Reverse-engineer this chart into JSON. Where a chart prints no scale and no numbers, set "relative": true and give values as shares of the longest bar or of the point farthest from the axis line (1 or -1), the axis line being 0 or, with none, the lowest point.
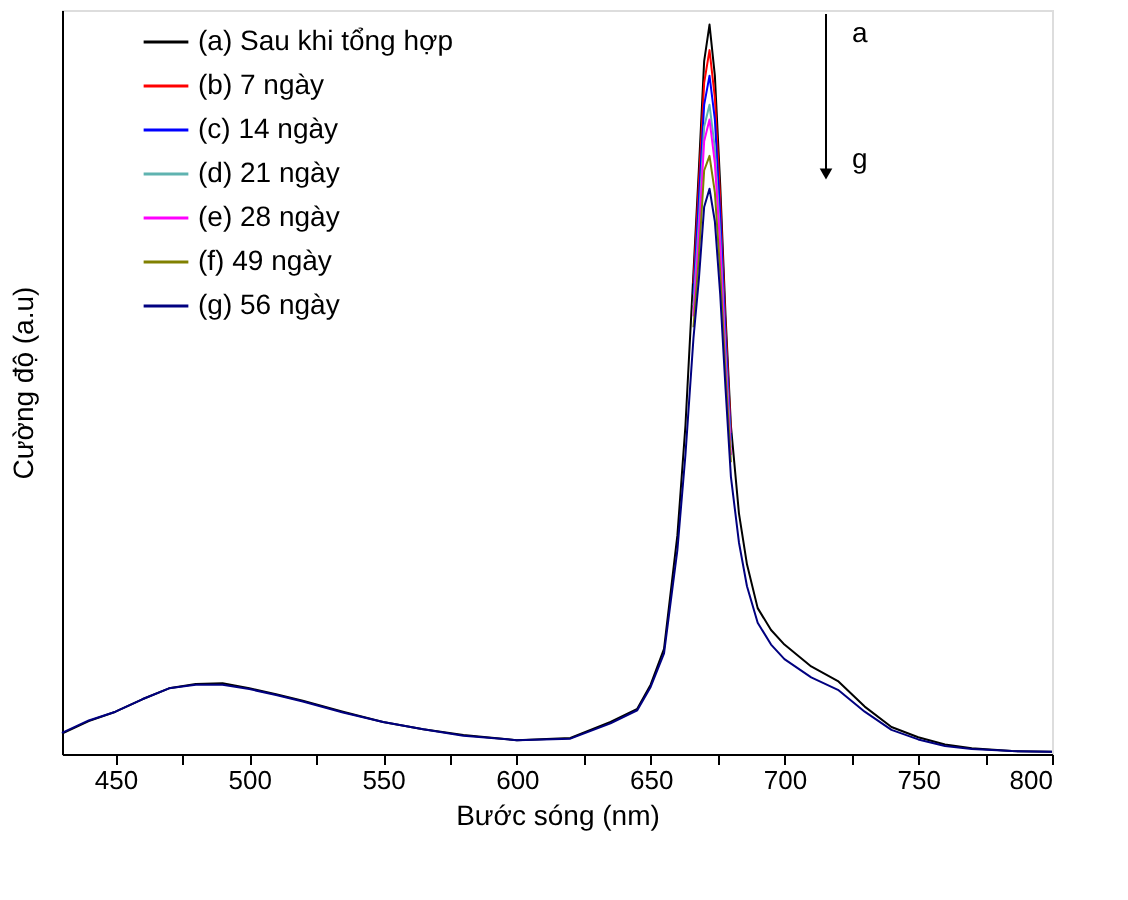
{
  "chart_data": {
    "type": "line",
    "xlabel": "Bước sóng (nm)",
    "ylabel": "Cường độ (a.u)",
    "relative": true,
    "grid": false,
    "legend": "top left",
    "line_style": "solid",
    "marker": "none",
    "tick_labels": "x",
    "x": [
      430,
      440,
      450,
      460,
      470,
      480,
      490,
      500,
      510,
      520,
      535,
      550,
      565,
      580,
      600,
      620,
      635,
      645,
      650,
      655,
      660,
      663,
      666,
      668,
      670,
      672,
      674,
      676,
      678,
      680,
      683,
      686,
      690,
      695,
      700,
      710,
      720,
      730,
      740,
      750,
      760,
      770,
      785,
      800
    ],
    "xlim": [
      430,
      800
    ],
    "xticks": [
      450,
      {
        "value": 475,
        "label": null
      },
      500,
      {
        "value": 525,
        "label": null
      },
      550,
      {
        "value": 575,
        "label": null
      },
      600,
      {
        "value": 625,
        "label": null
      },
      650,
      {
        "value": 675,
        "label": null
      },
      700,
      {
        "value": 725,
        "label": null
      },
      750,
      {
        "value": 775,
        "label": null
      },
      800
    ],
    "annotations": [
      "a",
      "g"
    ],
    "series": [
      {
        "name": "(a) Sau khi tổng hợp",
        "color": "#000000",
        "values": [
          0.028,
          0.045,
          0.058,
          0.075,
          0.09,
          0.096,
          0.097,
          0.09,
          0.082,
          0.073,
          0.058,
          0.044,
          0.034,
          0.026,
          0.019,
          0.022,
          0.044,
          0.062,
          0.095,
          0.144,
          0.3,
          0.45,
          0.66,
          0.8,
          0.95,
          1.0,
          0.93,
          0.78,
          0.6,
          0.45,
          0.33,
          0.26,
          0.2,
          0.17,
          0.15,
          0.12,
          0.1,
          0.065,
          0.037,
          0.023,
          0.013,
          0.008,
          0.004,
          0.003
        ]
      },
      {
        "name": "(b) 7 ngày",
        "color": "#ff0000",
        "values": [
          null,
          null,
          null,
          null,
          null,
          null,
          null,
          null,
          null,
          null,
          null,
          null,
          null,
          null,
          null,
          null,
          null,
          null,
          null,
          null,
          null,
          null,
          0.645,
          0.78,
          0.92,
          0.965,
          0.9,
          0.76,
          0.585,
          0.44,
          null,
          null,
          null,
          null,
          null,
          null,
          null,
          null,
          null,
          null,
          null,
          null,
          null,
          null
        ]
      },
      {
        "name": "(c) 14 ngày",
        "color": "#0000ff",
        "values": [
          null,
          null,
          null,
          null,
          null,
          null,
          null,
          null,
          null,
          null,
          null,
          null,
          null,
          null,
          null,
          null,
          null,
          null,
          null,
          null,
          null,
          null,
          0.63,
          0.76,
          0.89,
          0.93,
          0.87,
          0.74,
          0.57,
          0.43,
          null,
          null,
          null,
          null,
          null,
          null,
          null,
          null,
          null,
          null,
          null,
          null,
          null,
          null
        ]
      },
      {
        "name": "(d) 21 ngày",
        "color": "#5fb3b0",
        "values": [
          null,
          null,
          null,
          null,
          null,
          null,
          null,
          null,
          null,
          null,
          null,
          null,
          null,
          null,
          null,
          null,
          null,
          null,
          null,
          null,
          null,
          null,
          0.615,
          0.73,
          0.86,
          0.89,
          0.83,
          0.71,
          0.55,
          0.42,
          null,
          null,
          null,
          null,
          null,
          null,
          null,
          null,
          null,
          null,
          null,
          null,
          null,
          null
        ]
      },
      {
        "name": "(e) 28 ngày",
        "color": "#ff00ff",
        "values": [
          null,
          null,
          null,
          null,
          null,
          null,
          null,
          null,
          null,
          null,
          null,
          null,
          null,
          null,
          null,
          null,
          null,
          null,
          null,
          null,
          null,
          null,
          0.6,
          0.71,
          0.84,
          0.87,
          0.81,
          0.695,
          0.535,
          0.41,
          null,
          null,
          null,
          null,
          null,
          null,
          null,
          null,
          null,
          null,
          null,
          null,
          null,
          null
        ]
      },
      {
        "name": "(f) 49 ngày",
        "color": "#808000",
        "values": [
          null,
          null,
          null,
          null,
          null,
          null,
          null,
          null,
          null,
          null,
          null,
          null,
          null,
          null,
          null,
          null,
          null,
          null,
          null,
          null,
          null,
          null,
          0.585,
          0.68,
          0.8,
          0.82,
          0.77,
          0.66,
          0.52,
          0.4,
          null,
          null,
          null,
          null,
          null,
          null,
          null,
          null,
          null,
          null,
          null,
          null,
          null,
          null
        ]
      },
      {
        "name": "(g) 56 ngày",
        "color": "#000080",
        "values": [
          0.029,
          0.046,
          0.058,
          0.075,
          0.09,
          0.095,
          0.095,
          0.089,
          0.081,
          0.072,
          0.057,
          0.044,
          0.034,
          0.025,
          0.019,
          0.021,
          0.042,
          0.06,
          0.092,
          0.138,
          0.28,
          0.41,
          0.57,
          0.65,
          0.75,
          0.775,
          0.73,
          0.63,
          0.5,
          0.38,
          0.29,
          0.23,
          0.18,
          0.15,
          0.13,
          0.105,
          0.088,
          0.058,
          0.033,
          0.02,
          0.011,
          0.007,
          0.004,
          0.003
        ]
      }
    ]
  }
}
